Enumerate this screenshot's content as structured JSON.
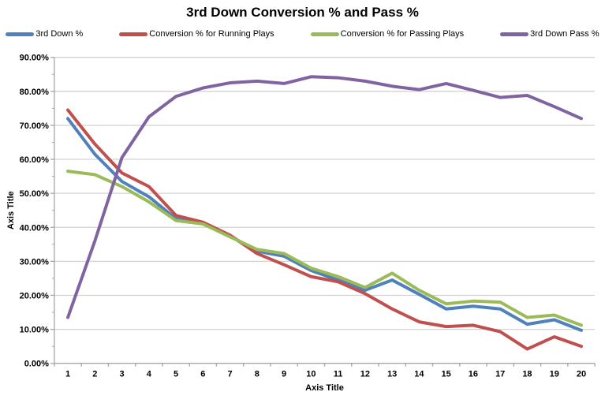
{
  "chart_data": {
    "type": "line",
    "title": "3rd Down Conversion % and Pass %",
    "xlabel": "Axis Title",
    "ylabel": "Axis Title",
    "x": [
      1,
      2,
      3,
      4,
      5,
      6,
      7,
      8,
      9,
      10,
      11,
      12,
      13,
      14,
      15,
      16,
      17,
      18,
      19,
      20
    ],
    "x_tick_labels": [
      "1",
      "2",
      "3",
      "4",
      "5",
      "6",
      "7",
      "8",
      "9",
      "10",
      "11",
      "12",
      "13",
      "14",
      "15",
      "16",
      "17",
      "18",
      "19",
      "20"
    ],
    "y_tick_labels": [
      "0.00%",
      "10.00%",
      "20.00%",
      "30.00%",
      "40.00%",
      "50.00%",
      "60.00%",
      "70.00%",
      "80.00%",
      "90.00%"
    ],
    "ylim": [
      0,
      90
    ],
    "grid": "horizontal",
    "legend_position": "top",
    "series": [
      {
        "name": "3rd Down %",
        "color": "#4F81BD",
        "values": [
          72,
          61.5,
          53.5,
          49,
          42.5,
          41,
          37.5,
          33,
          31.5,
          27.3,
          24.5,
          21.5,
          24.5,
          20.3,
          16,
          16.8,
          16,
          11.5,
          12.8,
          9.7
        ]
      },
      {
        "name": "Conversion % for Running Plays",
        "color": "#C0504D",
        "values": [
          74.5,
          64.5,
          56,
          52,
          43.5,
          41.5,
          37.7,
          32.3,
          29,
          25.5,
          24,
          20.5,
          16,
          12.2,
          10.8,
          11.2,
          9.3,
          4.2,
          7.8,
          5
        ]
      },
      {
        "name": "Conversion % for Passing Plays",
        "color": "#9BBB59",
        "values": [
          56.5,
          55.5,
          52,
          47.5,
          42,
          41,
          37.2,
          33.5,
          32.3,
          28,
          25.5,
          22.3,
          26.5,
          21.5,
          17.5,
          18.3,
          18,
          13.5,
          14.2,
          11.2
        ]
      },
      {
        "name": "3rd Down Pass %",
        "color": "#8064A2",
        "values": [
          13.5,
          36,
          60.5,
          72.5,
          78.5,
          81,
          82.5,
          83,
          82.3,
          84.3,
          84,
          83,
          81.5,
          80.5,
          82.3,
          80.3,
          78.2,
          78.8,
          75.5,
          72
        ]
      }
    ],
    "colors": {
      "gridline": "#D3D3D3",
      "axis": "#A6A6A6",
      "text": "#000000"
    }
  }
}
